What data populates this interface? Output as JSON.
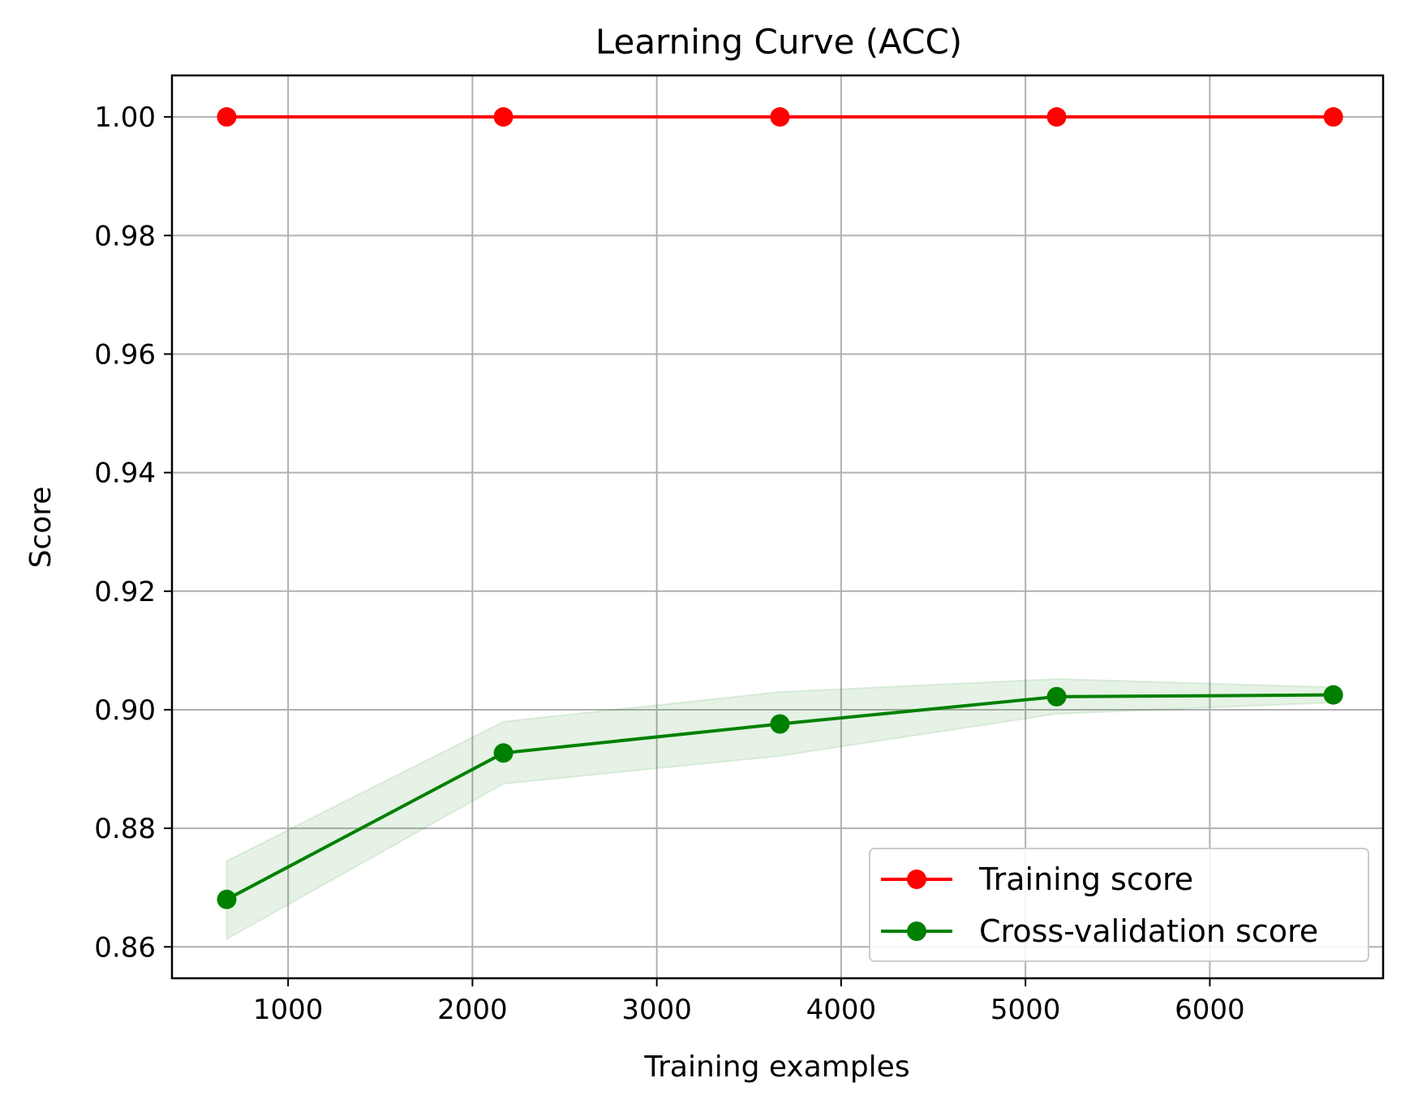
{
  "chart_data": {
    "type": "line",
    "title": "Learning Curve (ACC)",
    "xlabel": "Training examples",
    "ylabel": "Score",
    "xlim": [
      370,
      6940
    ],
    "ylim": [
      0.8547,
      1.007
    ],
    "xticks": [
      1000,
      2000,
      3000,
      4000,
      5000,
      6000
    ],
    "xtick_labels": [
      "1000",
      "2000",
      "3000",
      "4000",
      "5000",
      "6000"
    ],
    "yticks": [
      0.86,
      0.88,
      0.9,
      0.92,
      0.94,
      0.96,
      0.98,
      1.0
    ],
    "ytick_labels": [
      "0.86",
      "0.88",
      "0.90",
      "0.92",
      "0.94",
      "0.96",
      "0.98",
      "1.00"
    ],
    "grid": true,
    "legend_position": "lower-right",
    "x": [
      667,
      2168,
      3668,
      5169,
      6670
    ],
    "series": [
      {
        "name": "Training score",
        "color": "#ff0000",
        "marker": "circle",
        "values": [
          1.0,
          1.0,
          1.0,
          1.0,
          1.0
        ]
      },
      {
        "name": "Cross-validation score",
        "color": "#008000",
        "marker": "circle",
        "values": [
          0.868,
          0.8927,
          0.8976,
          0.9022,
          0.9025
        ],
        "band": {
          "lower": [
            0.8613,
            0.8875,
            0.8922,
            0.8993,
            0.9012
          ],
          "upper": [
            0.8745,
            0.898,
            0.903,
            0.9052,
            0.9038
          ],
          "color": "#008000",
          "opacity": 0.1
        }
      }
    ]
  }
}
